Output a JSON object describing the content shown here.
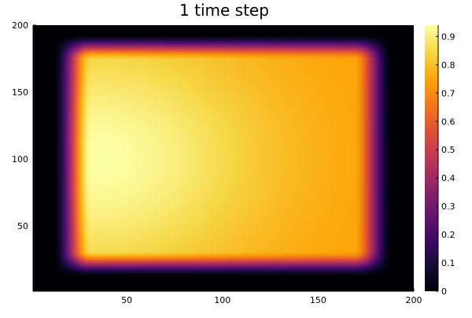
{
  "chart_data": {
    "type": "heatmap",
    "title": "1 time step",
    "xlabel": "",
    "ylabel": "",
    "xlim": [
      1,
      200
    ],
    "ylim": [
      1,
      200
    ],
    "x_ticks": [
      50,
      100,
      150,
      200
    ],
    "y_ticks": [
      50,
      100,
      150,
      200
    ],
    "x_tick_labels": [
      "50",
      "100",
      "150",
      "200"
    ],
    "y_tick_labels": [
      "50",
      "100",
      "150",
      "200"
    ],
    "colormap": "inferno",
    "colorbar": {
      "range": [
        0,
        0.94
      ],
      "ticks": [
        0,
        0.1,
        0.2,
        0.3,
        0.4,
        0.5,
        0.6,
        0.7,
        0.8,
        0.9
      ],
      "tick_labels": [
        "0",
        "0.1",
        "0.2",
        "0.3",
        "0.4",
        "0.5",
        "0.6",
        "0.7",
        "0.8",
        "0.9"
      ]
    },
    "grid": false,
    "field_description_values": {
      "peak_value": 0.94,
      "peak_x": 35,
      "peak_y": 100,
      "right_side_value": 0.74,
      "plateau_x_range": [
        25,
        175
      ],
      "plateau_y_range": [
        25,
        180
      ],
      "edge_value": 0
    }
  }
}
